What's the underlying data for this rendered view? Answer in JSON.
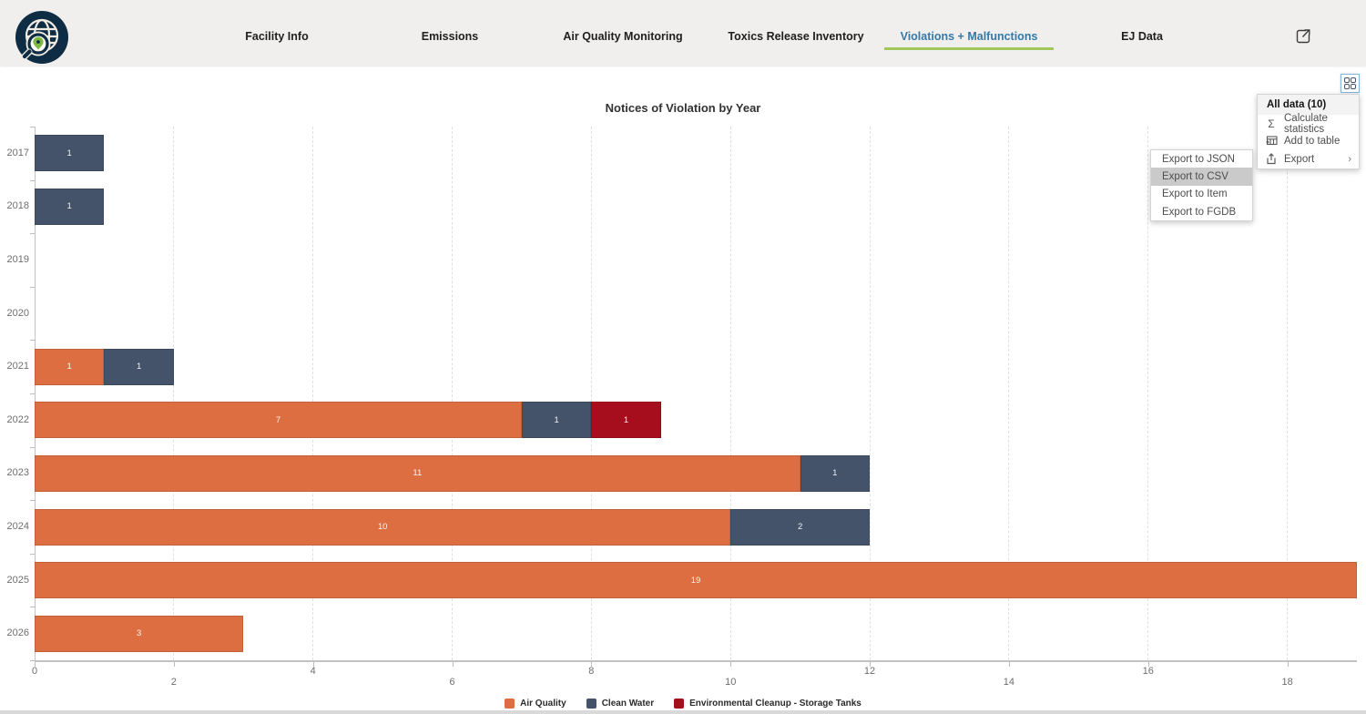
{
  "header": {
    "tabs": [
      {
        "label": "Facility Info"
      },
      {
        "label": "Emissions"
      },
      {
        "label": "Air Quality Monitoring"
      },
      {
        "label": "Toxics Release Inventory"
      },
      {
        "label": "Violations + Malfunctions"
      },
      {
        "label": "EJ Data"
      }
    ],
    "active_tab": "Violations + Malfunctions",
    "accent_underline_color": "#a1c75d",
    "active_tab_color": "#3579a8"
  },
  "actions_menu": {
    "header": "All data (10)",
    "items": [
      {
        "label": "Calculate statistics",
        "icon": "sigma-icon"
      },
      {
        "label": "Add to table",
        "icon": "table-plus-icon"
      },
      {
        "label": "Export",
        "icon": "export-icon",
        "has_submenu": true
      }
    ]
  },
  "export_submenu": {
    "items": [
      {
        "label": "Export to JSON",
        "highlighted": false
      },
      {
        "label": "Export to CSV",
        "highlighted": true
      },
      {
        "label": "Export to Item",
        "highlighted": false
      },
      {
        "label": "Export to FGDB",
        "highlighted": false
      }
    ]
  },
  "chart_data": {
    "type": "bar",
    "orientation": "horizontal",
    "stacked": true,
    "title": "Notices of Violation by Year",
    "categories": [
      "2017",
      "2018",
      "2019",
      "2020",
      "2021",
      "2022",
      "2023",
      "2024",
      "2025",
      "2026"
    ],
    "series": [
      {
        "name": "Air Quality",
        "color": "#dd6e41",
        "values": [
          0,
          0,
          0,
          0,
          1,
          7,
          11,
          10,
          19,
          3
        ]
      },
      {
        "name": "Clean Water",
        "color": "#44536a",
        "values": [
          1,
          1,
          0,
          0,
          1,
          1,
          1,
          2,
          0,
          0
        ]
      },
      {
        "name": "Environmental Cleanup - Storage Tanks",
        "color": "#a60d1d",
        "values": [
          0,
          0,
          0,
          0,
          0,
          1,
          0,
          0,
          0,
          0
        ]
      }
    ],
    "xlim": [
      0,
      19
    ],
    "x_ticks": [
      0,
      2,
      4,
      6,
      8,
      10,
      12,
      14,
      16,
      18
    ],
    "grid": "vertical-dashed",
    "legend_position": "bottom",
    "bar_labels": "values shown inside segments when > 0"
  }
}
